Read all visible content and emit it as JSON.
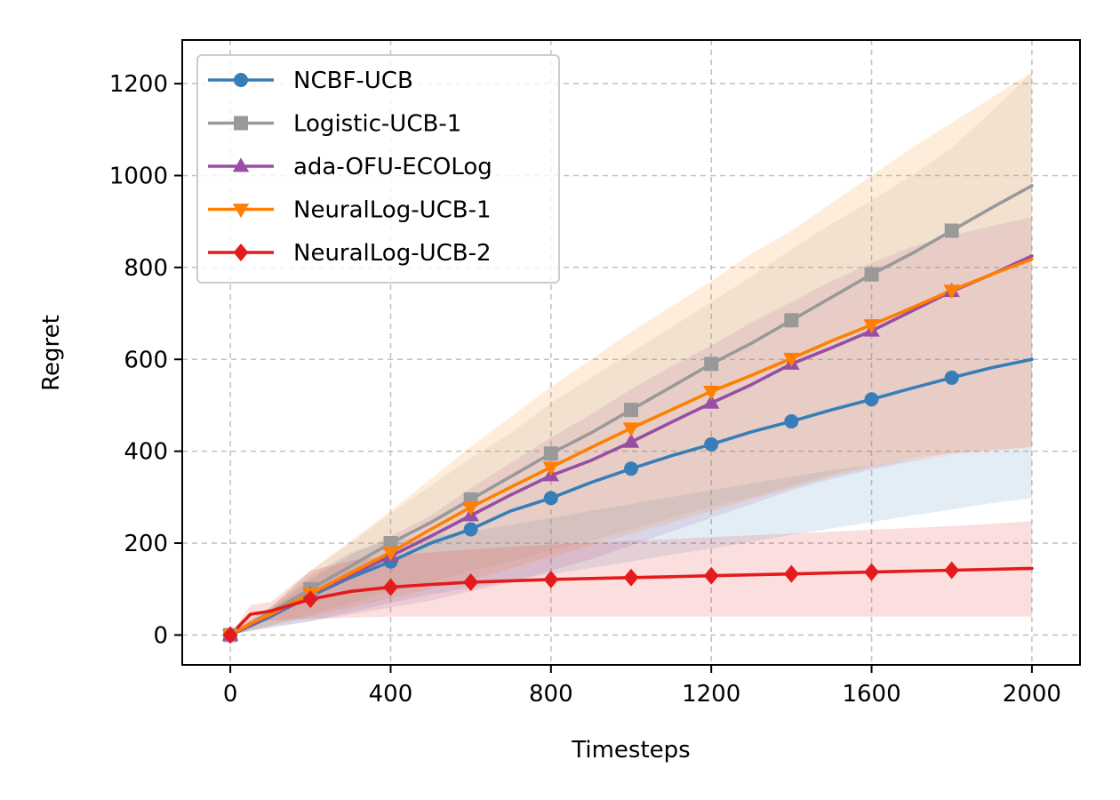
{
  "chart_data": {
    "type": "line",
    "title": "",
    "xlabel": "Timesteps",
    "ylabel": "Regret",
    "xlim": [
      -120,
      2120
    ],
    "ylim": [
      -65,
      1295
    ],
    "xticks": [
      0,
      400,
      800,
      1200,
      1600,
      2000
    ],
    "xtick_labels": [
      "0",
      "400",
      "800",
      "1200",
      "1600",
      "2000"
    ],
    "yticks": [
      0,
      200,
      400,
      600,
      800,
      1000,
      1200
    ],
    "ytick_labels": [
      "0",
      "200",
      "400",
      "600",
      "800",
      "1000",
      "1200"
    ],
    "grid": true,
    "legend_position": "top-left",
    "x": [
      0,
      50,
      100,
      200,
      300,
      400,
      500,
      600,
      700,
      800,
      900,
      1000,
      1100,
      1200,
      1300,
      1400,
      1500,
      1600,
      1700,
      1800,
      1900,
      2000
    ],
    "series": [
      {
        "name": "NCBF-UCB",
        "color": "#377eb8",
        "marker": "circle",
        "marker_x": [
          0,
          200,
          400,
          600,
          800,
          1000,
          1200,
          1400,
          1600,
          1800
        ],
        "values": [
          0,
          20,
          40,
          85,
          125,
          160,
          200,
          230,
          270,
          298,
          332,
          362,
          390,
          415,
          442,
          465,
          490,
          513,
          537,
          560,
          582,
          600
        ],
        "lower": [
          0,
          8,
          15,
          30,
          50,
          70,
          88,
          103,
          118,
          132,
          146,
          160,
          175,
          188,
          203,
          218,
          232,
          246,
          260,
          273,
          287,
          298
        ],
        "upper": [
          0,
          30,
          60,
          130,
          180,
          205,
          215,
          225,
          240,
          255,
          270,
          285,
          300,
          315,
          330,
          345,
          358,
          370,
          382,
          392,
          400,
          405
        ]
      },
      {
        "name": "Logistic-UCB-1",
        "color": "#999999",
        "marker": "square",
        "marker_x": [
          0,
          200,
          400,
          600,
          800,
          1000,
          1200,
          1400,
          1600,
          1800
        ],
        "values": [
          0,
          25,
          50,
          100,
          150,
          200,
          245,
          295,
          345,
          395,
          440,
          490,
          540,
          590,
          635,
          685,
          735,
          785,
          830,
          880,
          930,
          978
        ],
        "lower": [
          0,
          10,
          20,
          45,
          70,
          95,
          115,
          140,
          160,
          185,
          205,
          230,
          255,
          280,
          300,
          325,
          350,
          370,
          385,
          395,
          402,
          410
        ],
        "upper": [
          0,
          35,
          60,
          140,
          200,
          265,
          325,
          385,
          440,
          505,
          560,
          615,
          670,
          725,
          780,
          840,
          895,
          945,
          1000,
          1060,
          1140,
          1225
        ]
      },
      {
        "name": "ada-OFU-ECOLog",
        "color": "#984ea3",
        "marker": "triangle-up",
        "marker_x": [
          0,
          200,
          400,
          600,
          800,
          1000,
          1200,
          1400,
          1600,
          1800
        ],
        "values": [
          0,
          22,
          44,
          88,
          130,
          172,
          215,
          260,
          305,
          347,
          380,
          420,
          463,
          505,
          545,
          590,
          625,
          662,
          705,
          748,
          785,
          825
        ],
        "lower": [
          0,
          10,
          18,
          30,
          45,
          60,
          75,
          95,
          115,
          140,
          165,
          195,
          225,
          255,
          285,
          315,
          340,
          360,
          378,
          392,
          400,
          405
        ],
        "upper": [
          0,
          30,
          55,
          120,
          175,
          215,
          260,
          320,
          375,
          430,
          480,
          535,
          585,
          630,
          680,
          725,
          770,
          810,
          845,
          870,
          890,
          910
        ]
      },
      {
        "name": "NeuralLog-UCB-1",
        "color": "#ff7f00",
        "marker": "triangle-down",
        "marker_x": [
          0,
          200,
          400,
          600,
          800,
          1000,
          1200,
          1400,
          1600,
          1800
        ],
        "values": [
          0,
          25,
          45,
          90,
          135,
          180,
          230,
          278,
          322,
          365,
          408,
          450,
          490,
          530,
          565,
          602,
          640,
          675,
          712,
          750,
          785,
          818
        ],
        "lower": [
          0,
          10,
          20,
          40,
          60,
          80,
          100,
          120,
          145,
          170,
          195,
          220,
          245,
          270,
          295,
          320,
          345,
          365,
          382,
          395,
          402,
          408
        ],
        "upper": [
          0,
          35,
          60,
          140,
          205,
          270,
          340,
          410,
          475,
          540,
          600,
          660,
          715,
          770,
          830,
          880,
          940,
          1000,
          1060,
          1115,
          1170,
          1225
        ]
      },
      {
        "name": "NeuralLog-UCB-2",
        "color": "#e41a1c",
        "marker": "diamond",
        "marker_x": [
          0,
          200,
          400,
          600,
          800,
          1000,
          1200,
          1400,
          1600,
          1800
        ],
        "values": [
          0,
          45,
          52,
          78,
          95,
          104,
          110,
          115,
          118,
          121,
          123,
          125,
          127,
          129,
          131,
          133,
          135,
          137,
          139,
          141,
          143,
          145
        ],
        "lower": [
          0,
          25,
          32,
          35,
          38,
          40,
          40,
          40,
          40,
          40,
          40,
          40,
          40,
          40,
          40,
          40,
          40,
          40,
          40,
          40,
          40,
          40
        ],
        "upper": [
          0,
          65,
          72,
          140,
          162,
          172,
          180,
          186,
          192,
          197,
          201,
          205,
          209,
          213,
          217,
          221,
          225,
          229,
          233,
          237,
          242,
          248
        ]
      }
    ]
  }
}
